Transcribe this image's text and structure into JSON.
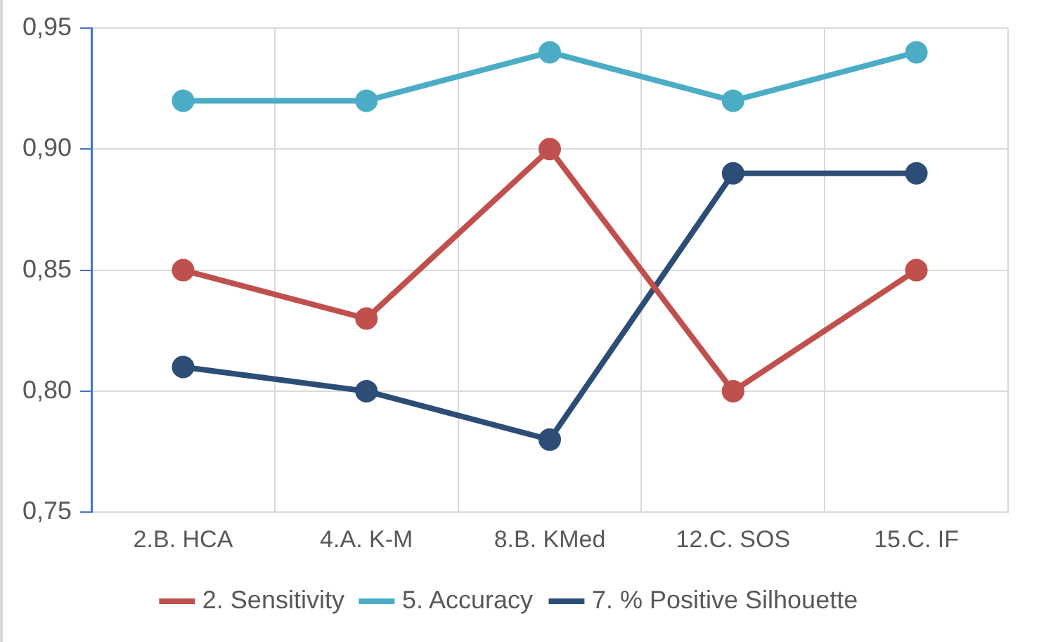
{
  "chart_data": {
    "type": "line",
    "categories": [
      "2.B. HCA",
      "4.A. K-M",
      "8.B. KMed",
      "12.C. SOS",
      "15.C. IF"
    ],
    "series": [
      {
        "name": "2. Sensitivity",
        "color": "#c0504d",
        "values": [
          0.85,
          0.83,
          0.9,
          0.8,
          0.85
        ]
      },
      {
        "name": "5. Accuracy",
        "color": "#4bacc6",
        "values": [
          0.92,
          0.92,
          0.94,
          0.92,
          0.94
        ]
      },
      {
        "name": "7. % Positive Silhouette",
        "color": "#2c4d75",
        "values": [
          0.81,
          0.8,
          0.78,
          0.89,
          0.89
        ]
      }
    ],
    "ylim": [
      0.75,
      0.95
    ],
    "yticks": [
      {
        "value": 0.75,
        "label": "0,75"
      },
      {
        "value": 0.8,
        "label": "0,80"
      },
      {
        "value": 0.85,
        "label": "0,85"
      },
      {
        "value": 0.9,
        "label": "0,90"
      },
      {
        "value": 0.95,
        "label": "0,95"
      }
    ],
    "grid": true,
    "legend": "bottom",
    "marker": "circle",
    "line_style": "solid"
  }
}
